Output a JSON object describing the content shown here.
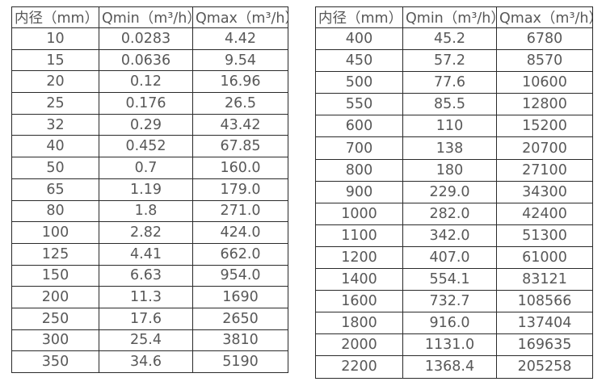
{
  "page": {
    "background_color": "#ffffff",
    "text_color": "#585858",
    "border_color": "#2a2a2a"
  },
  "tables": [
    {
      "name": "flow-range-table-small-diameters",
      "headers": [
        "内径（mm）",
        "Qmin（m³/h）",
        "Qmax（m³/h）"
      ],
      "rows": [
        [
          "10",
          "0.0283",
          "4.42"
        ],
        [
          "15",
          "0.0636",
          "9.54"
        ],
        [
          "20",
          "0.12",
          "16.96"
        ],
        [
          "25",
          "0.176",
          "26.5"
        ],
        [
          "32",
          "0.29",
          "43.42"
        ],
        [
          "40",
          "0.452",
          "67.85"
        ],
        [
          "50",
          "0.7",
          "160.0"
        ],
        [
          "65",
          "1.19",
          "179.0"
        ],
        [
          "80",
          "1.8",
          "271.0"
        ],
        [
          "100",
          "2.82",
          "424.0"
        ],
        [
          "125",
          "4.41",
          "662.0"
        ],
        [
          "150",
          "6.63",
          "954.0"
        ],
        [
          "200",
          "11.3",
          "1690"
        ],
        [
          "250",
          "17.6",
          "2650"
        ],
        [
          "300",
          "25.4",
          "3810"
        ],
        [
          "350",
          "34.6",
          "5190"
        ]
      ]
    },
    {
      "name": "flow-range-table-large-diameters",
      "headers": [
        "内径（mm）",
        "Qmin（m³/h）",
        "Qmax（m³/h）"
      ],
      "rows": [
        [
          "400",
          "45.2",
          "6780"
        ],
        [
          "450",
          "57.2",
          "8570"
        ],
        [
          "500",
          "77.6",
          "10600"
        ],
        [
          "550",
          "85.5",
          "12800"
        ],
        [
          "600",
          "110",
          "15200"
        ],
        [
          "700",
          "138",
          "20700"
        ],
        [
          "800",
          "180",
          "27100"
        ],
        [
          "900",
          "229.0",
          "34300"
        ],
        [
          "1000",
          "282.0",
          "42400"
        ],
        [
          "1100",
          "342.0",
          "51300"
        ],
        [
          "1200",
          "407.0",
          "61000"
        ],
        [
          "1400",
          "554.1",
          "83121"
        ],
        [
          "1600",
          "732.7",
          "108566"
        ],
        [
          "1800",
          "916.0",
          "137404"
        ],
        [
          "2000",
          "1131.0",
          "169635"
        ],
        [
          "2200",
          "1368.4",
          "205258"
        ]
      ]
    }
  ]
}
